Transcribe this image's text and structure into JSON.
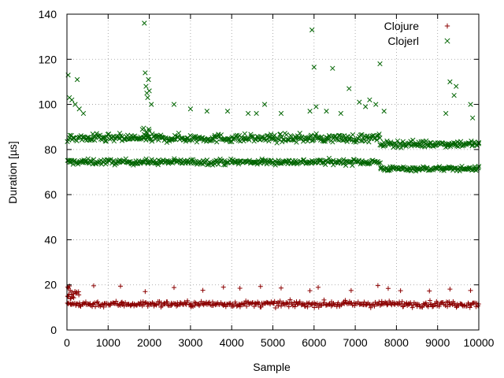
{
  "chart_data": {
    "type": "scatter",
    "xlabel": "Sample",
    "ylabel": "Duration [µs]",
    "xlim": [
      0,
      10000
    ],
    "ylim": [
      0,
      140
    ],
    "xticks": [
      0,
      1000,
      2000,
      3000,
      4000,
      5000,
      6000,
      7000,
      8000,
      9000,
      10000
    ],
    "yticks": [
      0,
      20,
      40,
      60,
      80,
      100,
      120,
      140
    ],
    "grid": true,
    "grid_style": "dotted",
    "legend_position": "top-right",
    "series": [
      {
        "name": "Clojure",
        "marker": "plus",
        "color": "#8b0000",
        "bands": [
          {
            "x_start": 0,
            "x_end": 10000,
            "center": 11.5,
            "spread": 1.6
          },
          {
            "x_start": 0,
            "x_end": 300,
            "center": 15.5,
            "spread": 2.5
          }
        ],
        "outliers": [
          [
            20,
            19.0
          ],
          [
            40,
            18.5
          ],
          [
            60,
            19.5
          ],
          [
            80,
            17.5
          ],
          [
            120,
            16.8
          ],
          [
            160,
            16.0
          ],
          [
            650,
            19.6
          ],
          [
            1300,
            19.4
          ],
          [
            1900,
            17.0
          ],
          [
            2600,
            18.8
          ],
          [
            3300,
            17.6
          ],
          [
            3800,
            19.0
          ],
          [
            4200,
            18.5
          ],
          [
            4700,
            19.3
          ],
          [
            5200,
            18.6
          ],
          [
            5900,
            17.4
          ],
          [
            6100,
            18.9
          ],
          [
            6900,
            17.5
          ],
          [
            7550,
            19.7
          ],
          [
            7800,
            18.4
          ],
          [
            8100,
            17.4
          ],
          [
            8800,
            17.3
          ],
          [
            9300,
            18.1
          ],
          [
            9800,
            17.5
          ]
        ]
      },
      {
        "name": "Clojerl",
        "marker": "cross",
        "color": "#006400",
        "bands": [
          {
            "x_start": 0,
            "x_end": 7600,
            "center": 74.5,
            "spread": 1.5
          },
          {
            "x_start": 7600,
            "x_end": 10000,
            "center": 71.5,
            "spread": 1.2
          },
          {
            "x_start": 0,
            "x_end": 7600,
            "center": 85.0,
            "spread": 2.2
          },
          {
            "x_start": 7600,
            "x_end": 10000,
            "center": 82.5,
            "spread": 1.8
          },
          {
            "x_start": 1820,
            "x_end": 2000,
            "center": 87.0,
            "spread": 4.0
          }
        ],
        "outliers": [
          [
            30,
            113.0
          ],
          [
            60,
            103.0
          ],
          [
            120,
            102.0
          ],
          [
            200,
            100.0
          ],
          [
            250,
            111.0
          ],
          [
            300,
            98.0
          ],
          [
            400,
            96.0
          ],
          [
            1880,
            136.0
          ],
          [
            1900,
            114.0
          ],
          [
            1920,
            108.0
          ],
          [
            1940,
            105.0
          ],
          [
            1960,
            103.0
          ],
          [
            1980,
            111.0
          ],
          [
            2000,
            106.0
          ],
          [
            2050,
            100.0
          ],
          [
            2600,
            100.0
          ],
          [
            3000,
            98.0
          ],
          [
            3400,
            97.0
          ],
          [
            3900,
            97.0
          ],
          [
            4400,
            96.0
          ],
          [
            4600,
            96.0
          ],
          [
            4800,
            100.0
          ],
          [
            5200,
            96.0
          ],
          [
            5900,
            97.0
          ],
          [
            5950,
            133.0
          ],
          [
            6000,
            116.5
          ],
          [
            6050,
            99.0
          ],
          [
            6300,
            97.0
          ],
          [
            6450,
            116.0
          ],
          [
            6650,
            96.0
          ],
          [
            6850,
            107.0
          ],
          [
            7100,
            101.0
          ],
          [
            7250,
            99.0
          ],
          [
            7350,
            102.0
          ],
          [
            7500,
            100.0
          ],
          [
            7600,
            118.0
          ],
          [
            7700,
            97.0
          ],
          [
            9200,
            96.0
          ],
          [
            9300,
            110.0
          ],
          [
            9400,
            104.0
          ],
          [
            9450,
            108.0
          ],
          [
            9800,
            100.0
          ],
          [
            9850,
            94.0
          ]
        ]
      }
    ]
  }
}
